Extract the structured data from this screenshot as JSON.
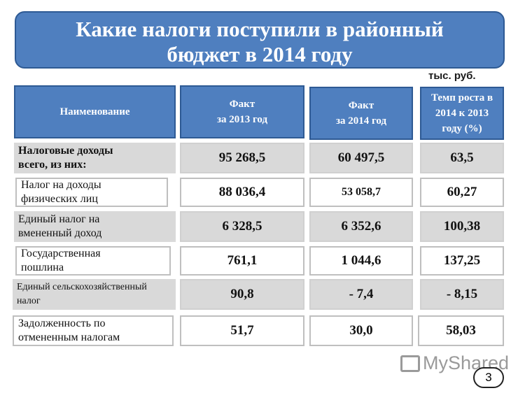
{
  "title": {
    "line1": "Какие налоги поступили в районный",
    "line2": "бюджет в 2014 году"
  },
  "unit_label": "тыс. руб.",
  "headers": {
    "name": "Наименование",
    "fact2013_line1": "Факт",
    "fact2013_line2": "за 2013 год",
    "fact2014_line1": "Факт",
    "fact2014_line2": "за 2014 год",
    "growth_line1": "Темп роста в",
    "growth_line2": "2014 к 2013",
    "growth_line3": "году (%)"
  },
  "rows": [
    {
      "name1": "Налоговые доходы",
      "name2": "всего, из них:",
      "fact2013": "95 268,5",
      "fact2014": "60 497,5",
      "growth": "63,5"
    },
    {
      "name1": "Налог на доходы",
      "name2": "физических лиц",
      "fact2013": "88 036,4",
      "fact2014": "53 058,7",
      "growth": "60,27"
    },
    {
      "name1": "Единый налог на",
      "name2": "вмененный доход",
      "fact2013": "6 328,5",
      "fact2014": "6 352,6",
      "growth": "100,38"
    },
    {
      "name1": "Государственная",
      "name2": "пошлина",
      "fact2013": "761,1",
      "fact2014": "1 044,6",
      "growth": "137,25"
    },
    {
      "name1": "Единый сельскохозяйственный",
      "name2": "налог",
      "fact2013": "90,8",
      "fact2014": "- 7,4",
      "growth": "- 8,15"
    },
    {
      "name1": "Задолженность по",
      "name2": "отмененным налогам",
      "fact2013": "51,7",
      "fact2014": "30,0",
      "growth": "58,03"
    }
  ],
  "watermark": "MyShared",
  "page_number": "3"
}
